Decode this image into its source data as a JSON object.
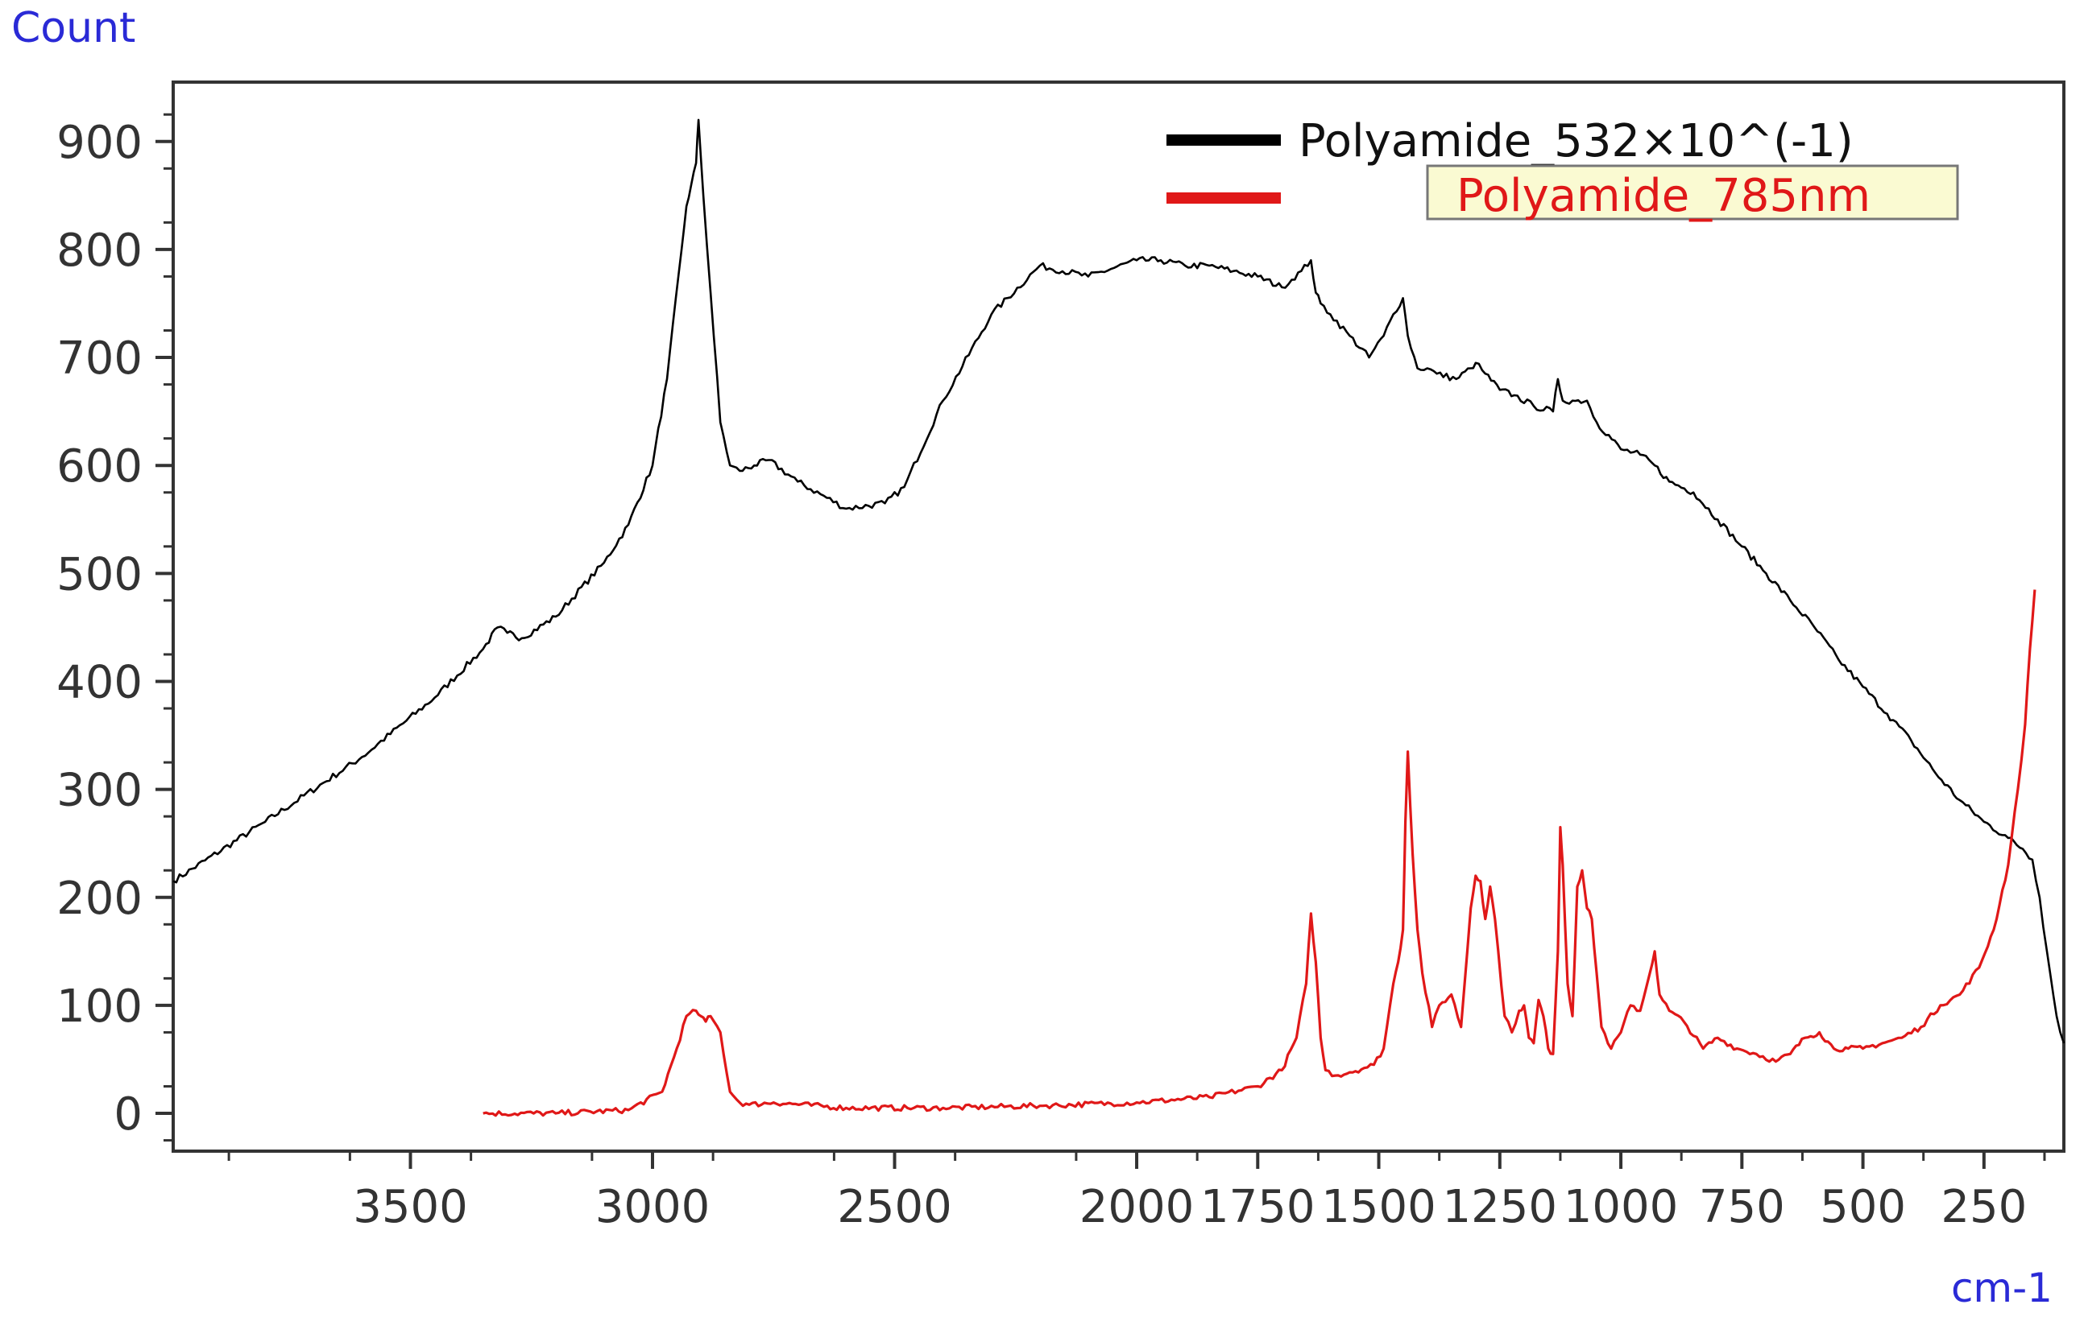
{
  "chart_data": {
    "type": "line",
    "ylabel": "Count",
    "xlabel": "cm-1",
    "xlim": [
      3990,
      85
    ],
    "ylim": [
      -35,
      955
    ],
    "x_reversed": true,
    "grid": false,
    "legend_position": "top-right",
    "x_ticks": [
      {
        "value": 3500,
        "label": "3500"
      },
      {
        "value": 3000,
        "label": "3000"
      },
      {
        "value": 2500,
        "label": "2500"
      },
      {
        "value": 2000,
        "label": "2000"
      },
      {
        "value": 1750,
        "label": "1750"
      },
      {
        "value": 1500,
        "label": "1500"
      },
      {
        "value": 1250,
        "label": "1250"
      },
      {
        "value": 1000,
        "label": "1000"
      },
      {
        "value": 750,
        "label": "750"
      },
      {
        "value": 500,
        "label": "500"
      },
      {
        "value": 250,
        "label": "250"
      }
    ],
    "y_ticks": [
      {
        "value": 900,
        "label": "900"
      },
      {
        "value": 800,
        "label": "800"
      },
      {
        "value": 700,
        "label": "700"
      },
      {
        "value": 600,
        "label": "600"
      },
      {
        "value": 500,
        "label": "500"
      },
      {
        "value": 400,
        "label": "400"
      },
      {
        "value": 300,
        "label": "300"
      },
      {
        "value": 200,
        "label": "200"
      },
      {
        "value": 100,
        "label": "100"
      },
      {
        "value": 0,
        "label": "0"
      }
    ],
    "series": [
      {
        "name": "Polyamide_532×10^(-1)",
        "color": "#000000",
        "x": [
          3990,
          3800,
          3600,
          3450,
          3350,
          3320,
          3300,
          3270,
          3200,
          3100,
          3050,
          3000,
          2970,
          2940,
          2930,
          2920,
          2910,
          2905,
          2895,
          2880,
          2860,
          2840,
          2820,
          2790,
          2760,
          2700,
          2600,
          2520,
          2480,
          2400,
          2300,
          2200,
          2100,
          2000,
          1950,
          1900,
          1850,
          1800,
          1750,
          1700,
          1660,
          1640,
          1630,
          1620,
          1600,
          1560,
          1520,
          1490,
          1470,
          1450,
          1440,
          1420,
          1400,
          1380,
          1340,
          1310,
          1300,
          1280,
          1250,
          1220,
          1180,
          1140,
          1130,
          1120,
          1100,
          1070,
          1050,
          1000,
          960,
          930,
          900,
          850,
          800,
          750,
          700,
          650,
          600,
          550,
          500,
          450,
          400,
          350,
          300,
          250,
          200,
          170,
          150,
          135,
          120,
          100,
          85
        ],
        "y": [
          215,
          270,
          330,
          385,
          430,
          450,
          445,
          440,
          460,
          510,
          545,
          600,
          680,
          800,
          840,
          860,
          880,
          920,
          850,
          760,
          640,
          600,
          595,
          600,
          605,
          585,
          560,
          565,
          580,
          660,
          740,
          785,
          775,
          790,
          790,
          785,
          785,
          780,
          775,
          765,
          780,
          790,
          760,
          750,
          740,
          720,
          700,
          720,
          740,
          755,
          720,
          690,
          690,
          685,
          680,
          690,
          695,
          685,
          670,
          665,
          655,
          650,
          680,
          660,
          660,
          660,
          640,
          615,
          610,
          600,
          585,
          575,
          550,
          525,
          500,
          475,
          450,
          420,
          395,
          370,
          345,
          315,
          290,
          270,
          255,
          245,
          235,
          200,
          150,
          90,
          65
        ],
        "style": "solid"
      },
      {
        "name": "Polyamide_785nm",
        "color": "#e01818",
        "x": [
          3350,
          3200,
          3050,
          2980,
          2950,
          2930,
          2910,
          2900,
          2890,
          2880,
          2860,
          2840,
          2820,
          2800,
          2750,
          2600,
          2400,
          2200,
          2000,
          1850,
          1750,
          1700,
          1670,
          1650,
          1640,
          1630,
          1620,
          1610,
          1590,
          1560,
          1530,
          1510,
          1490,
          1470,
          1460,
          1450,
          1445,
          1440,
          1430,
          1420,
          1410,
          1390,
          1375,
          1350,
          1330,
          1310,
          1300,
          1290,
          1280,
          1270,
          1260,
          1240,
          1225,
          1210,
          1200,
          1190,
          1180,
          1170,
          1160,
          1150,
          1140,
          1130,
          1125,
          1120,
          1110,
          1100,
          1090,
          1080,
          1070,
          1060,
          1050,
          1040,
          1020,
          1000,
          980,
          960,
          940,
          930,
          920,
          900,
          870,
          830,
          800,
          760,
          720,
          680,
          650,
          620,
          590,
          560,
          530,
          500,
          460,
          420,
          380,
          340,
          300,
          260,
          230,
          200,
          180,
          165,
          155,
          145
        ],
        "y": [
          0,
          0,
          3,
          20,
          60,
          90,
          95,
          90,
          85,
          90,
          75,
          20,
          10,
          8,
          10,
          5,
          5,
          7,
          10,
          15,
          25,
          40,
          70,
          120,
          185,
          140,
          70,
          40,
          35,
          38,
          42,
          45,
          60,
          120,
          140,
          170,
          270,
          335,
          240,
          170,
          130,
          80,
          100,
          110,
          80,
          190,
          220,
          215,
          180,
          210,
          180,
          90,
          75,
          95,
          100,
          70,
          65,
          105,
          90,
          60,
          55,
          150,
          265,
          230,
          120,
          90,
          210,
          225,
          190,
          180,
          130,
          80,
          60,
          75,
          100,
          95,
          130,
          150,
          110,
          95,
          85,
          60,
          70,
          60,
          55,
          48,
          55,
          70,
          75,
          60,
          60,
          60,
          65,
          70,
          80,
          100,
          110,
          135,
          170,
          230,
          300,
          360,
          430,
          485
        ],
        "style": "solid"
      }
    ]
  },
  "legend": {
    "entries": [
      {
        "label": "Polyamide_532×10^(-1)",
        "color": "#000000",
        "highlighted": false
      },
      {
        "label": "Polyamide_785nm",
        "color": "#e01818",
        "highlighted": true
      }
    ],
    "highlight_fill": "#fafad2"
  }
}
